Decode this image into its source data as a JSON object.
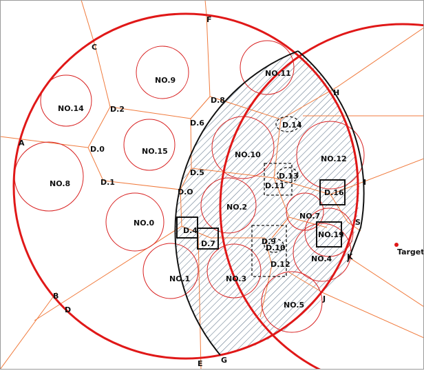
{
  "diagram": {
    "point_labels": {
      "A": "A",
      "B": "B",
      "C": "C",
      "D": "D",
      "E": "E",
      "F": "F",
      "G": "G",
      "H": "H",
      "I": "I",
      "J": "J",
      "K": "K",
      "S": "S"
    },
    "target_label": "Target",
    "circles": {
      "c0": "NO.0",
      "c1": "NO.1",
      "c2": "NO.2",
      "c3": "NO.3",
      "c4": "NO.4",
      "c5": "NO.5",
      "c7": "NO.7",
      "c8": "NO.8",
      "c9": "NO.9",
      "c10": "NO.10",
      "c11": "NO.11",
      "c12": "NO.12",
      "c14": "NO.14",
      "c15": "NO.15",
      "c19": "NO.19"
    },
    "nodes": {
      "d0": "D.0",
      "d0b": "D.O",
      "d1": "D.1",
      "d2": "D.2",
      "d4": "D.4",
      "d5": "D.5",
      "d6": "D.6",
      "d7": "D.7",
      "d8": "D.8",
      "d9": "D.9",
      "d10": "D.10",
      "d11": "D.11",
      "d12": "D.12",
      "d13": "D.13",
      "d14": "D.14",
      "d16": "D.16"
    },
    "colors": {
      "outer_circle": "#e01818",
      "voronoi_edge": "#f07a3c",
      "obstacle_circle": "#d82020",
      "lens_outline": "#111111",
      "hatch": "#5a6f86"
    }
  }
}
